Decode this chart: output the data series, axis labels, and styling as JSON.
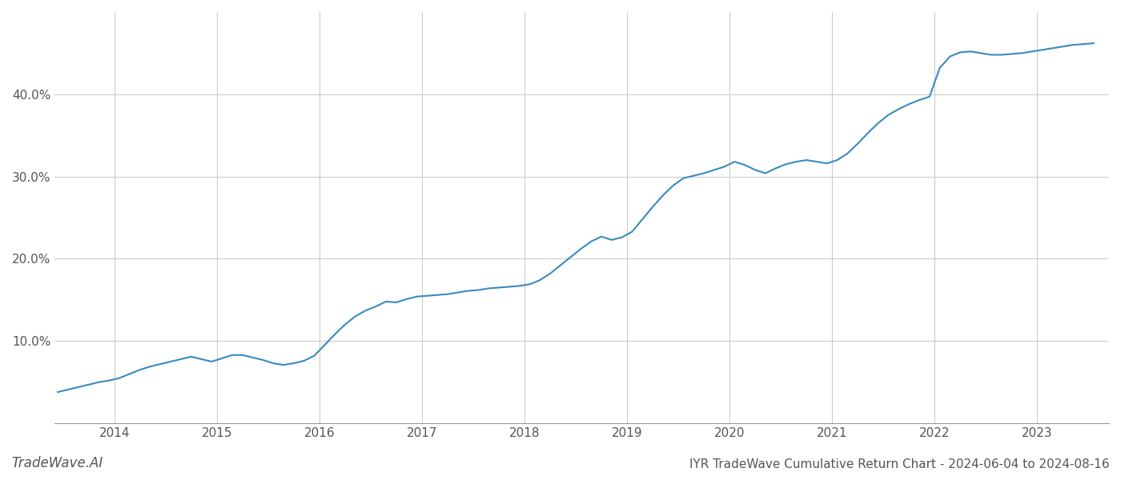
{
  "title": "IYR TradeWave Cumulative Return Chart - 2024-06-04 to 2024-08-16",
  "watermark": "TradeWave.AI",
  "line_color": "#3a8abf",
  "background_color": "#ffffff",
  "grid_color": "#cccccc",
  "x_values": [
    2013.45,
    2013.55,
    2013.65,
    2013.75,
    2013.85,
    2013.95,
    2014.05,
    2014.15,
    2014.25,
    2014.35,
    2014.45,
    2014.55,
    2014.65,
    2014.75,
    2014.85,
    2014.95,
    2015.05,
    2015.15,
    2015.25,
    2015.35,
    2015.45,
    2015.55,
    2015.65,
    2015.75,
    2015.85,
    2015.95,
    2016.05,
    2016.15,
    2016.25,
    2016.35,
    2016.45,
    2016.55,
    2016.65,
    2016.75,
    2016.85,
    2016.95,
    2017.05,
    2017.15,
    2017.25,
    2017.35,
    2017.45,
    2017.55,
    2017.65,
    2017.75,
    2017.85,
    2017.95,
    2018.05,
    2018.15,
    2018.25,
    2018.35,
    2018.45,
    2018.55,
    2018.65,
    2018.75,
    2018.85,
    2018.95,
    2019.05,
    2019.15,
    2019.25,
    2019.35,
    2019.45,
    2019.55,
    2019.65,
    2019.75,
    2019.85,
    2019.95,
    2020.05,
    2020.15,
    2020.25,
    2020.35,
    2020.45,
    2020.55,
    2020.65,
    2020.75,
    2020.85,
    2020.95,
    2021.05,
    2021.15,
    2021.25,
    2021.35,
    2021.45,
    2021.55,
    2021.65,
    2021.75,
    2021.85,
    2021.95,
    2022.05,
    2022.15,
    2022.25,
    2022.35,
    2022.45,
    2022.55,
    2022.65,
    2022.75,
    2022.85,
    2022.95,
    2023.05,
    2023.15,
    2023.25,
    2023.35,
    2023.45,
    2023.55
  ],
  "y_values": [
    3.8,
    4.1,
    4.4,
    4.7,
    5.0,
    5.2,
    5.5,
    6.0,
    6.5,
    6.9,
    7.2,
    7.5,
    7.8,
    8.1,
    7.8,
    7.5,
    7.9,
    8.3,
    8.3,
    8.0,
    7.7,
    7.3,
    7.1,
    7.3,
    7.6,
    8.2,
    9.5,
    10.8,
    12.0,
    13.0,
    13.7,
    14.2,
    14.8,
    14.7,
    15.1,
    15.4,
    15.5,
    15.6,
    15.7,
    15.9,
    16.1,
    16.2,
    16.4,
    16.5,
    16.6,
    16.7,
    16.9,
    17.4,
    18.2,
    19.2,
    20.2,
    21.2,
    22.1,
    22.7,
    22.3,
    22.6,
    23.3,
    24.8,
    26.3,
    27.7,
    28.9,
    29.8,
    30.1,
    30.4,
    30.8,
    31.2,
    31.8,
    31.4,
    30.8,
    30.4,
    31.0,
    31.5,
    31.8,
    32.0,
    31.8,
    31.6,
    32.0,
    32.8,
    34.0,
    35.3,
    36.5,
    37.5,
    38.2,
    38.8,
    39.3,
    39.7,
    43.2,
    44.6,
    45.1,
    45.2,
    45.0,
    44.8,
    44.8,
    44.9,
    45.0,
    45.2,
    45.4,
    45.6,
    45.8,
    46.0,
    46.1,
    46.2
  ],
  "xlim": [
    2013.42,
    2023.7
  ],
  "ylim": [
    0,
    50
  ],
  "yticks": [
    10.0,
    20.0,
    30.0,
    40.0
  ],
  "xticks": [
    2014,
    2015,
    2016,
    2017,
    2018,
    2019,
    2020,
    2021,
    2022,
    2023
  ],
  "xtick_labels": [
    "2014",
    "2015",
    "2016",
    "2017",
    "2018",
    "2019",
    "2020",
    "2021",
    "2022",
    "2023"
  ],
  "line_width": 1.5,
  "title_fontsize": 11,
  "tick_fontsize": 11,
  "watermark_fontsize": 12
}
